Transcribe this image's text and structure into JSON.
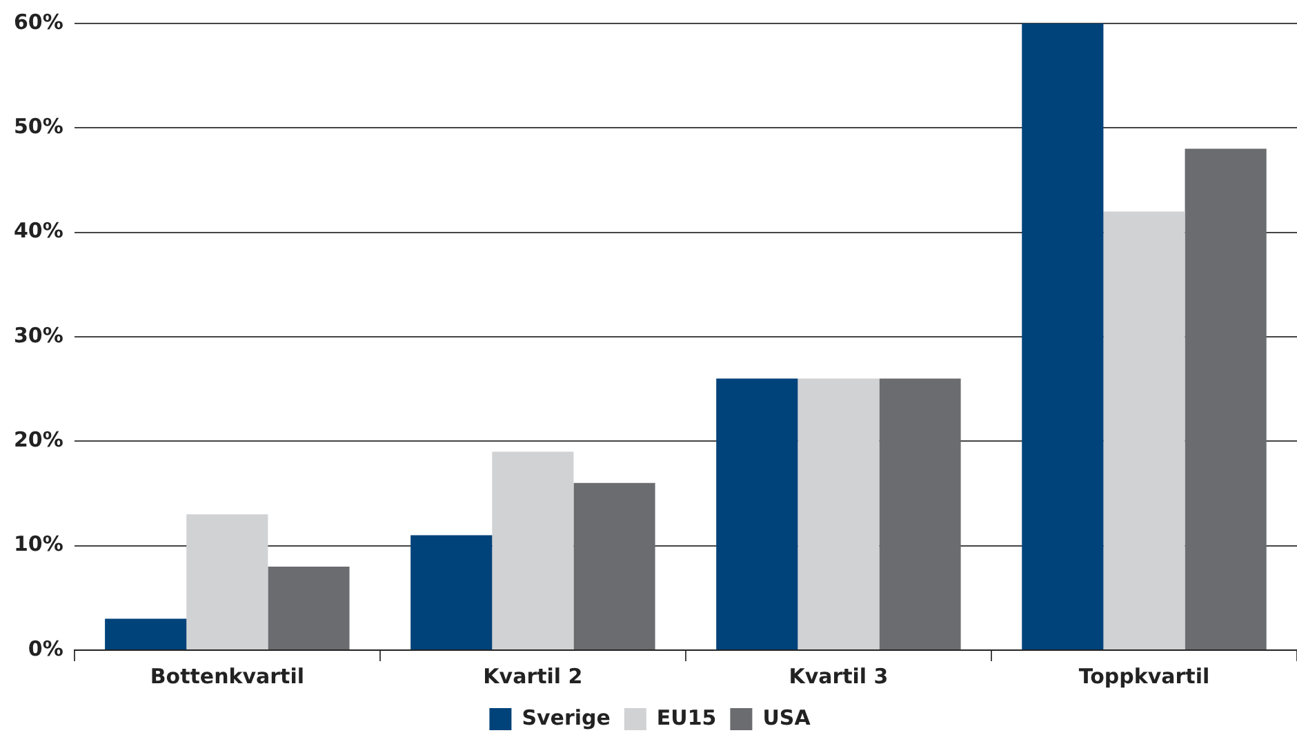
{
  "chart_data": {
    "type": "bar",
    "categories": [
      "Bottenkvartil",
      "Kvartil 2",
      "Kvartil 3",
      "Toppkvartil"
    ],
    "series": [
      {
        "name": "Sverige",
        "color": "#00427a",
        "values": [
          3,
          11,
          26,
          60
        ]
      },
      {
        "name": "EU15",
        "color": "#d1d2d4",
        "values": [
          13,
          19,
          26,
          42
        ]
      },
      {
        "name": "USA",
        "color": "#6b6c70",
        "values": [
          8,
          16,
          26,
          48
        ]
      }
    ],
    "ylim": [
      0,
      60
    ],
    "yticks": [
      {
        "value": 0,
        "label": "0%"
      },
      {
        "value": 10,
        "label": "10%"
      },
      {
        "value": 20,
        "label": "20%"
      },
      {
        "value": 30,
        "label": "30%"
      },
      {
        "value": 40,
        "label": "40%"
      },
      {
        "value": 50,
        "label": "50%"
      },
      {
        "value": 60,
        "label": "60%"
      }
    ],
    "grid": "y",
    "legend": "bottom"
  }
}
